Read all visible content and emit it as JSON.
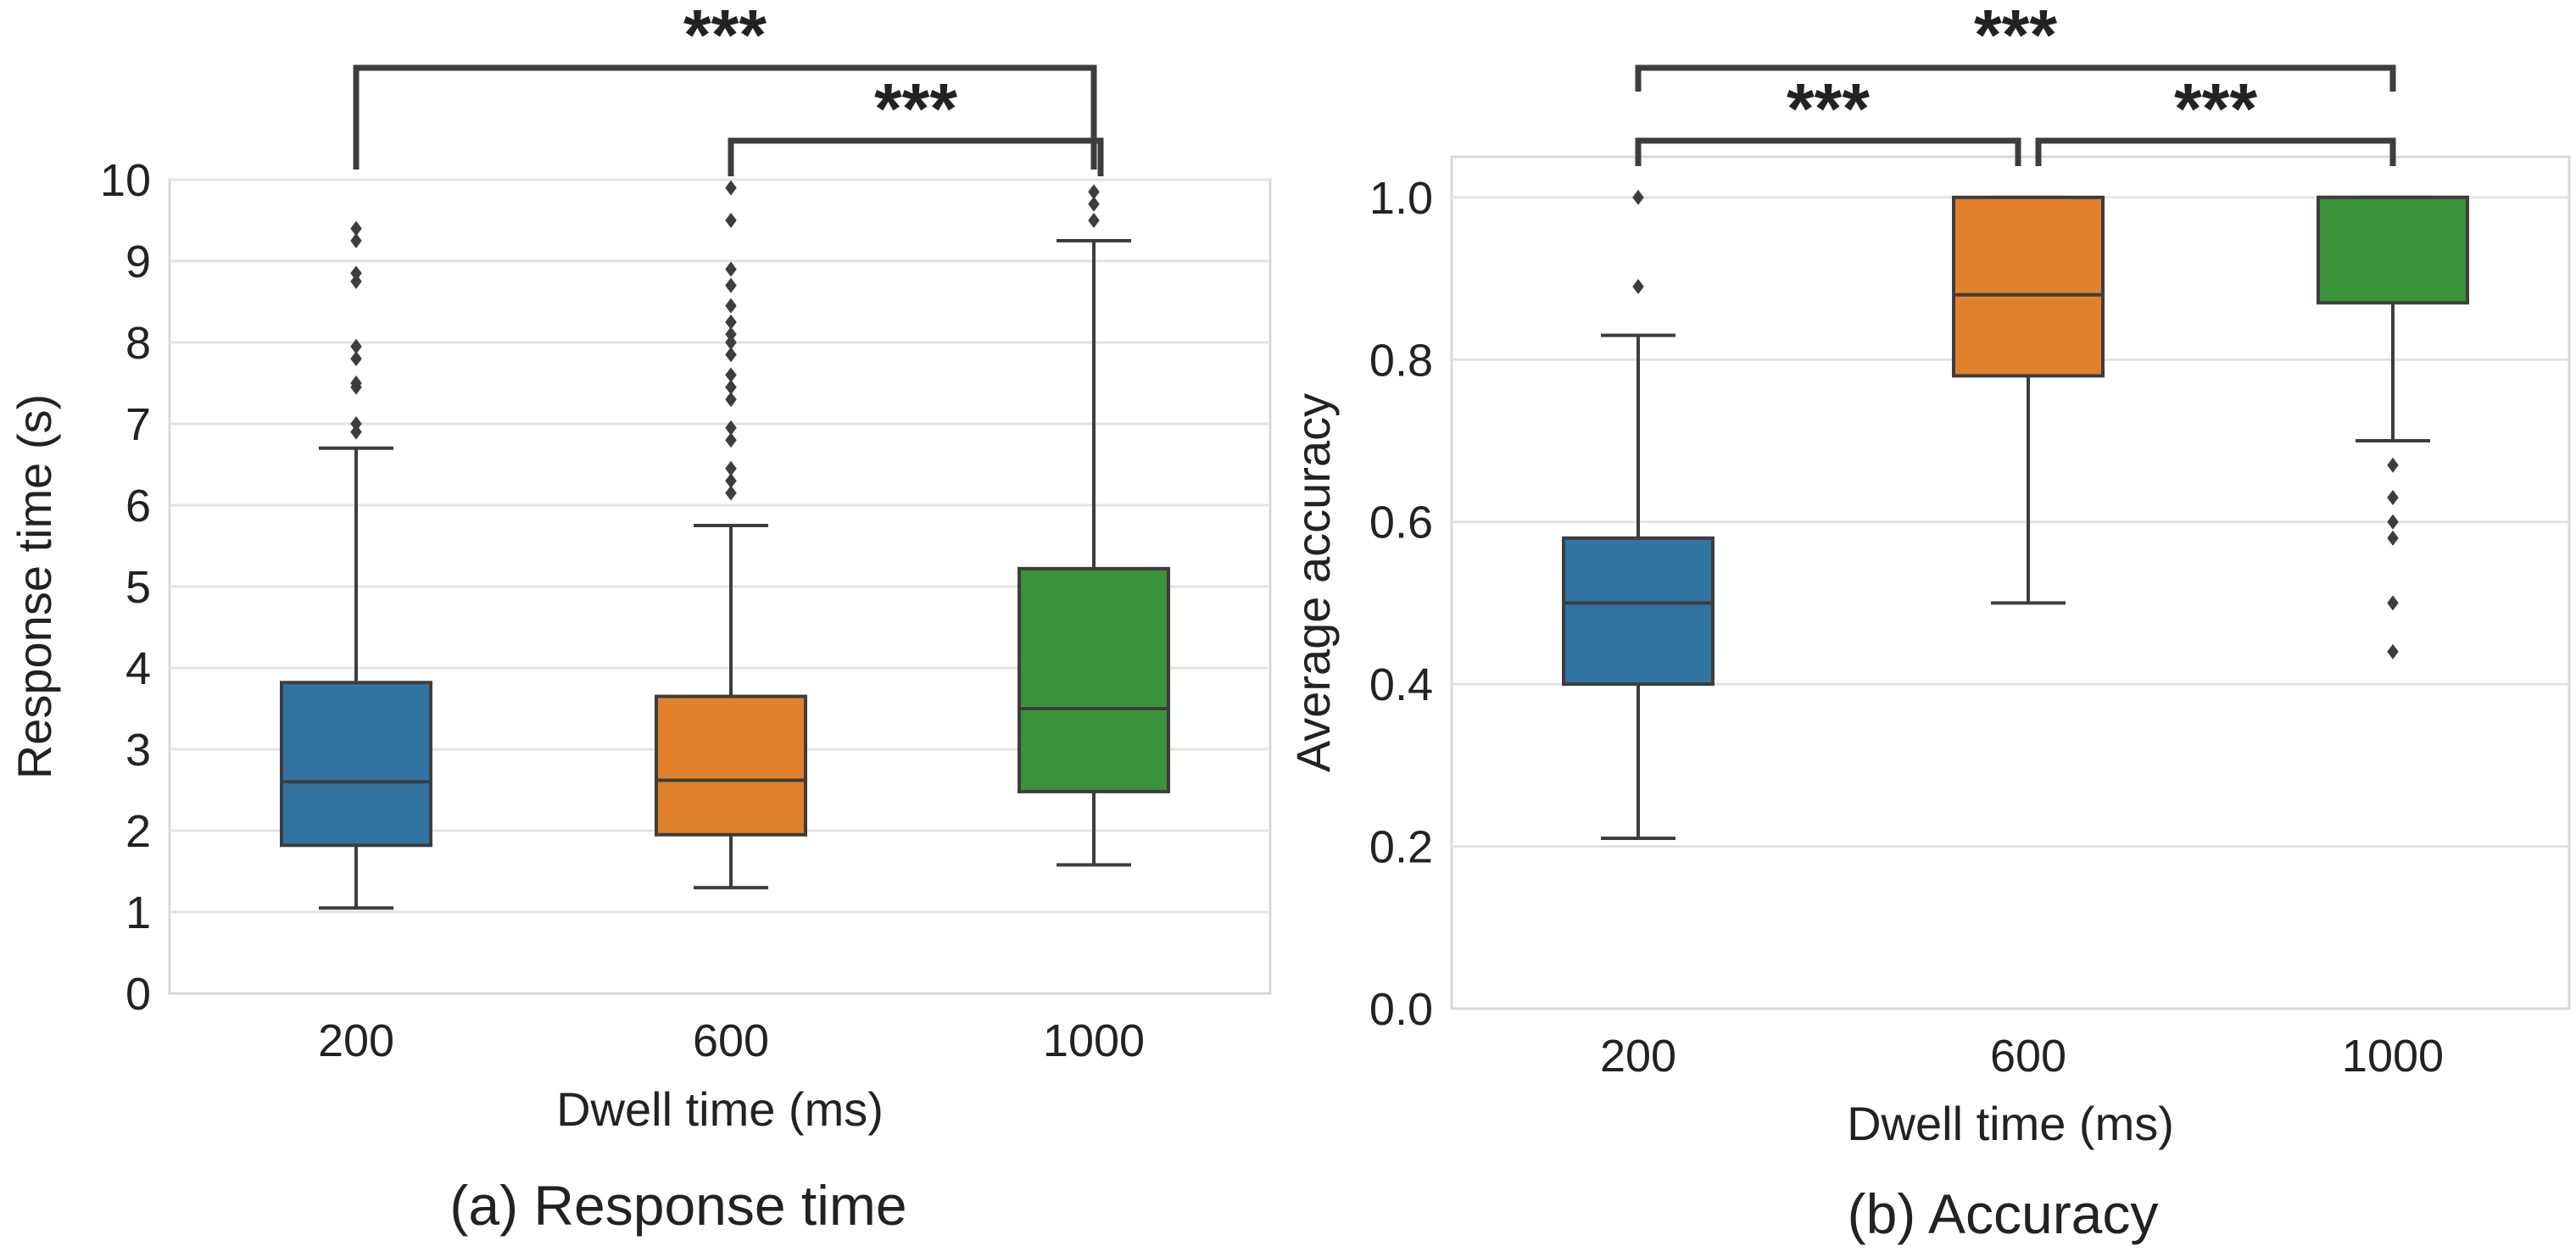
{
  "colors": {
    "dwell_200": "#3274a1",
    "dwell_600": "#e1812c",
    "dwell_1000": "#3a923a",
    "grid": "#e3e3e3",
    "frame": "#d8d8d8",
    "line": "#3d3d3d"
  },
  "chart_data": [
    {
      "type": "box",
      "caption": "(a) Response time",
      "xlabel": "Dwell time (ms)",
      "ylabel": "Response time (s)",
      "categories": [
        "200",
        "600",
        "1000"
      ],
      "ylim": [
        0,
        10
      ],
      "yticks": [
        0,
        1,
        2,
        3,
        4,
        5,
        6,
        7,
        8,
        9,
        10
      ],
      "ytick_labels": [
        "0",
        "1",
        "2",
        "3",
        "4",
        "5",
        "6",
        "7",
        "8",
        "9",
        "10"
      ],
      "grid": true,
      "boxes": [
        {
          "category": "200",
          "whisker_low": 1.05,
          "q1": 1.82,
          "median": 2.6,
          "q3": 3.82,
          "whisker_high": 6.7,
          "outliers": [
            6.9,
            7.0,
            7.45,
            7.5,
            7.8,
            7.95,
            8.75,
            8.85,
            9.25,
            9.4
          ]
        },
        {
          "category": "600",
          "whisker_low": 1.3,
          "q1": 1.95,
          "median": 2.62,
          "q3": 3.65,
          "whisker_high": 5.75,
          "outliers": [
            6.15,
            6.3,
            6.45,
            6.8,
            6.95,
            7.3,
            7.45,
            7.6,
            7.85,
            8.0,
            8.1,
            8.25,
            8.45,
            8.7,
            8.9,
            9.5,
            9.9
          ]
        },
        {
          "category": "1000",
          "whisker_low": 1.58,
          "q1": 2.48,
          "median": 3.5,
          "q3": 5.22,
          "whisker_high": 9.25,
          "outliers": [
            9.5,
            9.7,
            9.85
          ]
        }
      ],
      "significance": [
        {
          "from": "200",
          "to": "1000",
          "label": "***"
        },
        {
          "from": "600",
          "to": "1000",
          "label": "***"
        }
      ]
    },
    {
      "type": "box",
      "caption": "(b) Accuracy",
      "xlabel": "Dwell time (ms)",
      "ylabel": "Average accuracy",
      "categories": [
        "200",
        "600",
        "1000"
      ],
      "ylim": [
        0,
        1.05
      ],
      "yticks": [
        0.0,
        0.2,
        0.4,
        0.6,
        0.8,
        1.0
      ],
      "ytick_labels": [
        "0.0",
        "0.2",
        "0.4",
        "0.6",
        "0.8",
        "1.0"
      ],
      "grid": true,
      "boxes": [
        {
          "category": "200",
          "whisker_low": 0.21,
          "q1": 0.4,
          "median": 0.5,
          "q3": 0.58,
          "whisker_high": 0.83,
          "outliers": [
            0.89,
            1.0
          ]
        },
        {
          "category": "600",
          "whisker_low": 0.5,
          "q1": 0.78,
          "median": 0.88,
          "q3": 1.0,
          "whisker_high": 1.0,
          "outliers": []
        },
        {
          "category": "1000",
          "whisker_low": 0.7,
          "q1": 0.87,
          "median": 1.0,
          "q3": 1.0,
          "whisker_high": 1.0,
          "outliers": [
            0.44,
            0.5,
            0.58,
            0.6,
            0.63,
            0.67
          ]
        }
      ],
      "significance": [
        {
          "from": "200",
          "to": "1000",
          "label": "***"
        },
        {
          "from": "200",
          "to": "600",
          "label": "***"
        },
        {
          "from": "600",
          "to": "1000",
          "label": "***"
        }
      ]
    }
  ]
}
